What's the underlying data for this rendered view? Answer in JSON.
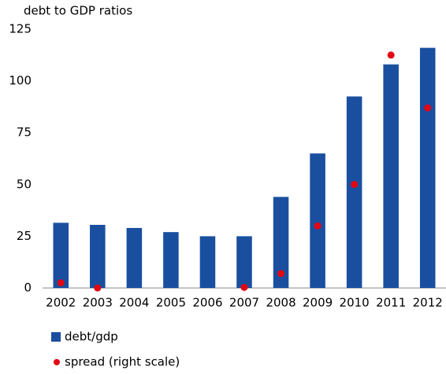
{
  "chart_data": {
    "type": "bar",
    "title": "debt to GDP ratios",
    "categories": [
      "2002",
      "2003",
      "2004",
      "2005",
      "2006",
      "2007",
      "2008",
      "2009",
      "2010",
      "2011",
      "2012"
    ],
    "series": [
      {
        "name": "debt/gdp",
        "type": "bar",
        "color": "#1a4f9f",
        "values": [
          31.5,
          30.5,
          29,
          27,
          25,
          25,
          44,
          65,
          92.5,
          108,
          116
        ]
      },
      {
        "name": "spread (right scale)",
        "type": "scatter",
        "color": "#e30613",
        "values": [
          2.5,
          0,
          null,
          null,
          null,
          0.3,
          7,
          30,
          50,
          112.5,
          87
        ]
      }
    ],
    "ylim": [
      0,
      125
    ],
    "yticks": [
      0,
      25,
      50,
      75,
      100,
      125
    ],
    "grid": false
  }
}
